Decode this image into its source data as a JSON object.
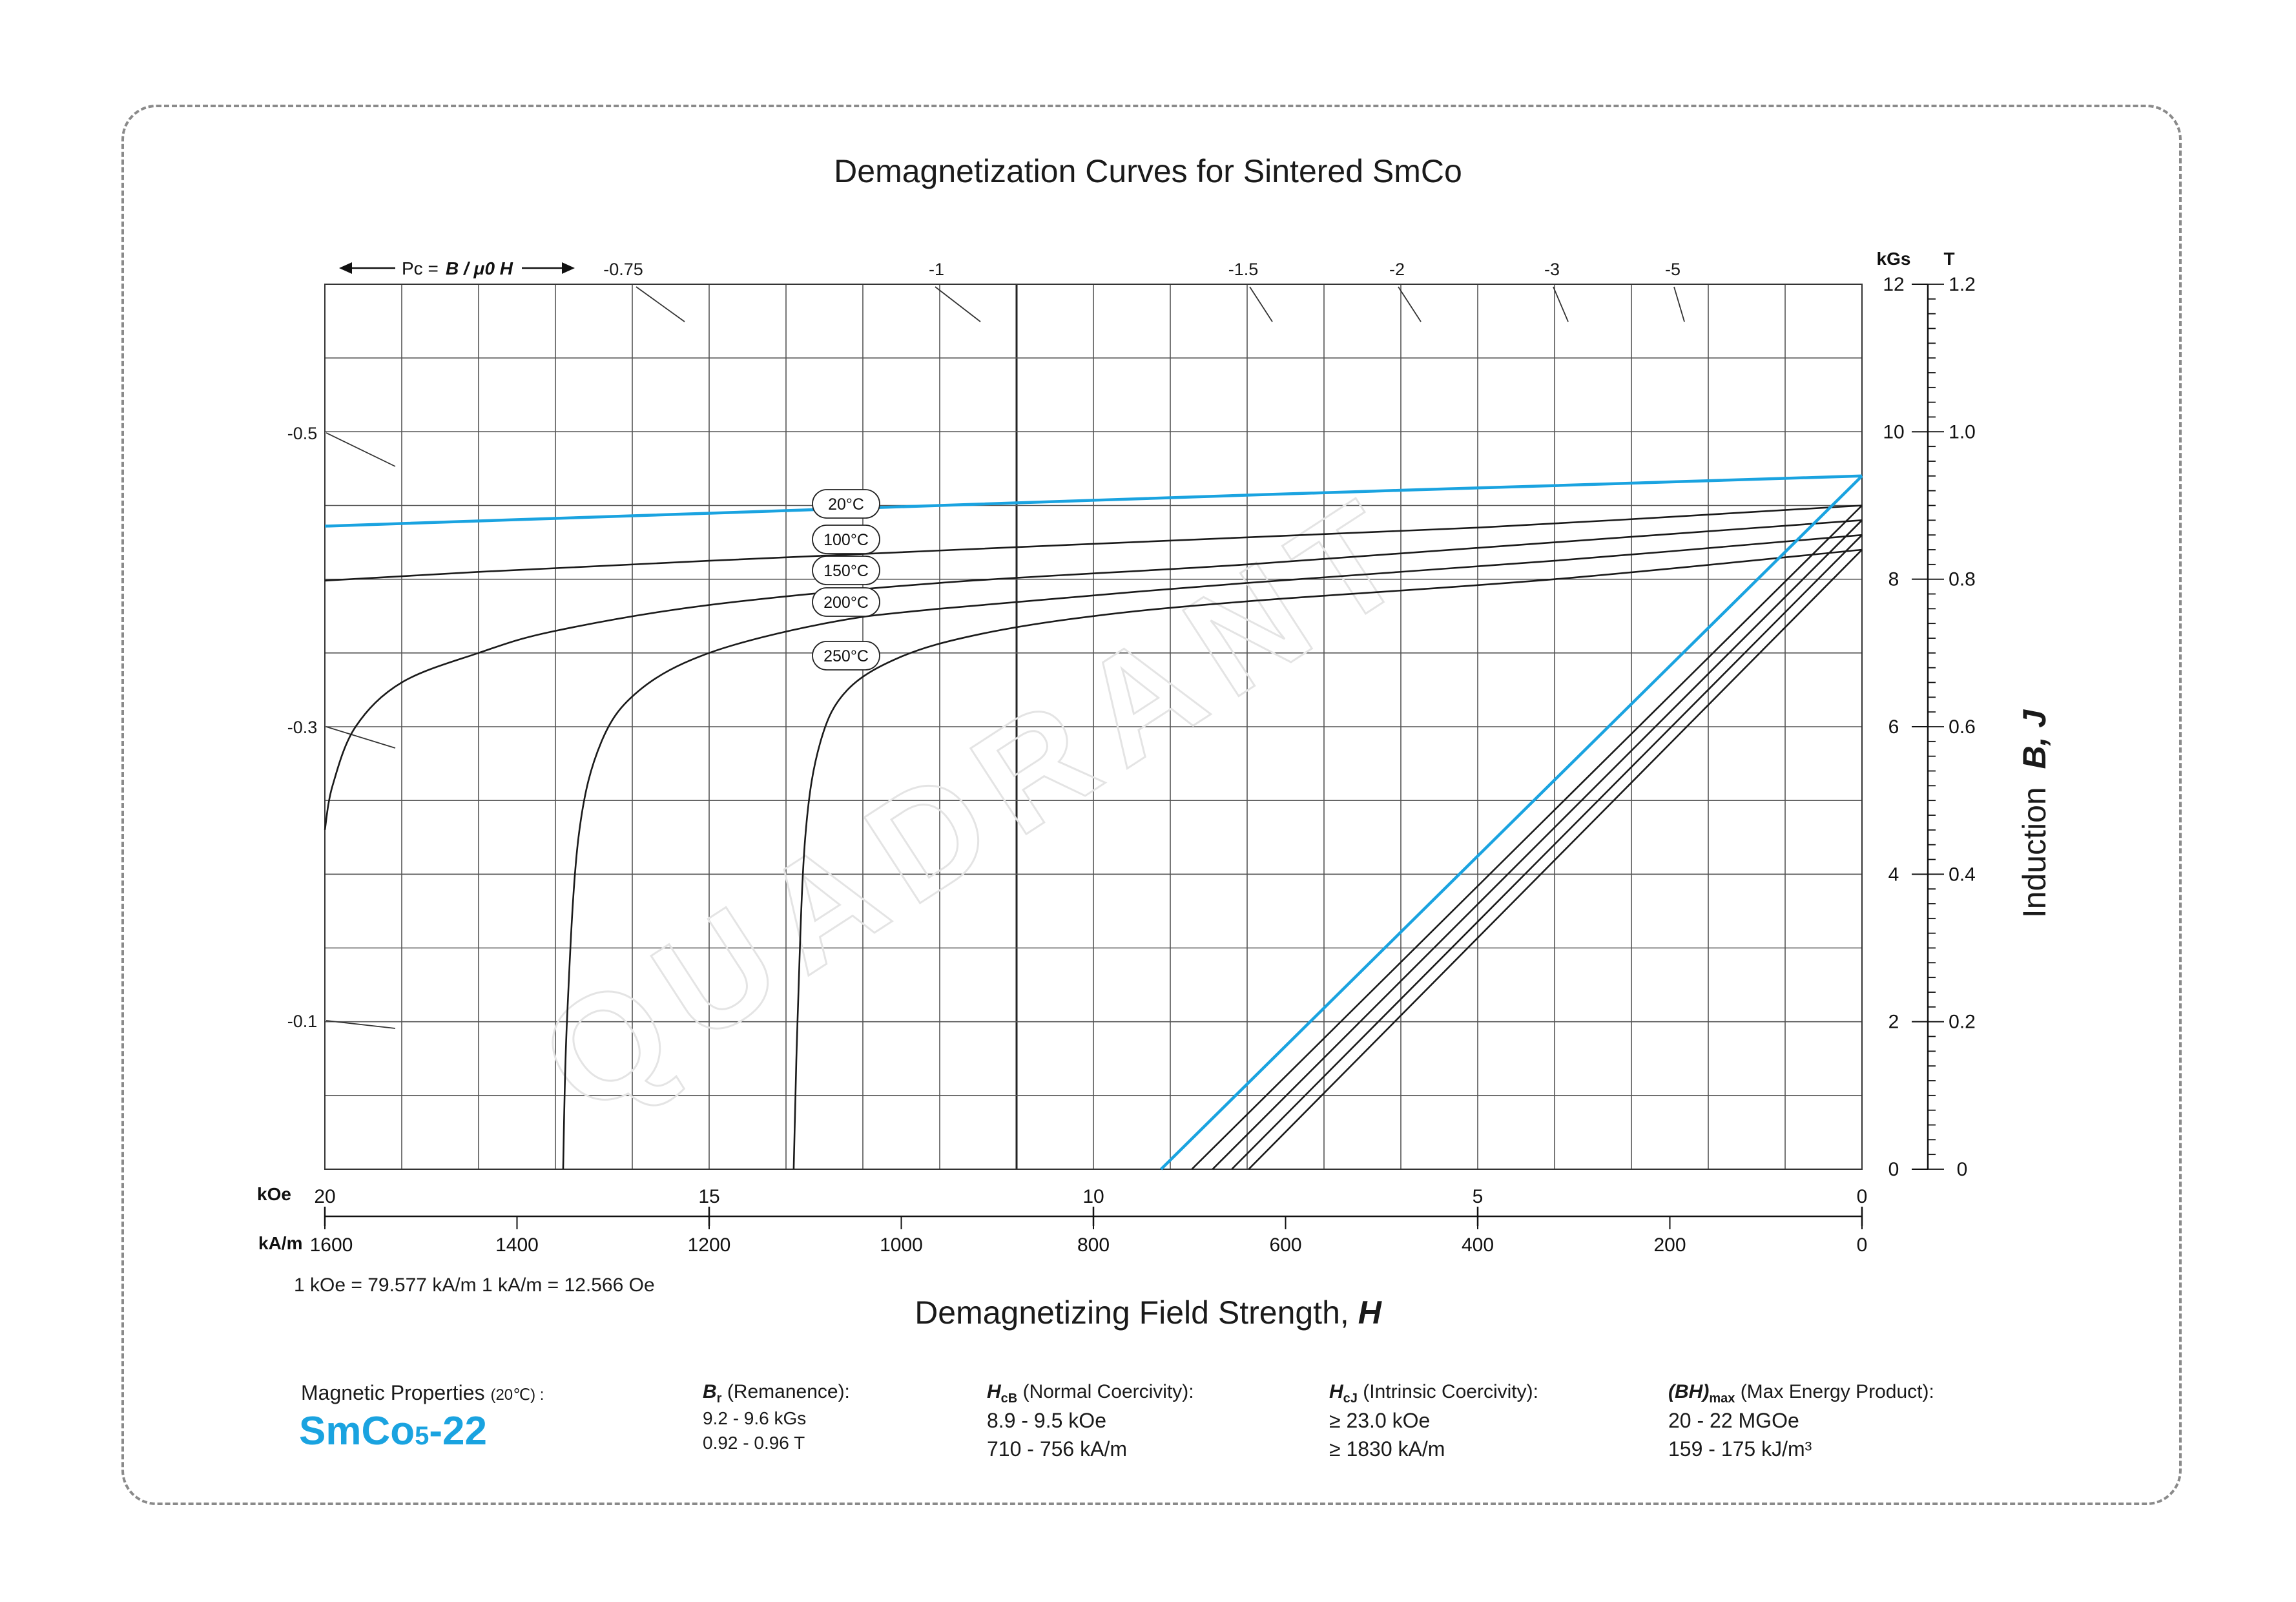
{
  "title": "Demagnetization Curves for Sintered SmCo",
  "conversion_note": "1 kOe = 79.577 kA/m   1 kA/m = 12.566 Oe",
  "x_axis_title": "Demagnetizing Field Strength,",
  "x_axis_title_symbol": "H",
  "y_axis_title": "Induction",
  "y_axis_title_symbol": "B, J",
  "magnetic_properties": {
    "label": "Magnetic Properties",
    "temperature": "(20℃) :",
    "grade": "SmCo",
    "grade_sub": "5",
    "grade_suffix": "-22",
    "items": [
      {
        "symbol": "B",
        "sub": "r",
        "desc": "(Remanence):",
        "line1": "9.2 - 9.6 kGs",
        "line2": "0.92 - 0.96 T"
      },
      {
        "symbol": "H",
        "sub": "cB",
        "desc": "(Normal Coercivity):",
        "line1": "8.9 - 9.5 kOe",
        "line2": "710 - 756 kA/m"
      },
      {
        "symbol": "H",
        "sub": "cJ",
        "desc": "(Intrinsic Coercivity):",
        "line1": "≥ 23.0 kOe",
        "line2": "≥ 1830 kA/m"
      },
      {
        "symbol": "(BH)",
        "sub": "max",
        "desc": "(Max Energy Product):",
        "line1": "20 - 22 MGOe",
        "line2": "159 - 175 kJ/m³"
      }
    ]
  },
  "watermark": "QUADRANT",
  "colors": {
    "highlight": "#1aa3e0",
    "curve": "#1a1a1a",
    "grid": "#555555"
  },
  "chart_data": {
    "type": "line",
    "x_direction": "reversed",
    "xlim": [
      20,
      0
    ],
    "ylim": [
      0,
      12
    ],
    "grid": true,
    "x_unit_label": "kOe",
    "x_alt_unit_label": "kA/m",
    "y_unit_label": "kGs",
    "y_alt_unit_label": "T",
    "x_ticks": [
      20,
      15,
      10,
      5,
      0
    ],
    "x_alt_ticks": [
      1600,
      1400,
      1200,
      1000,
      800,
      600,
      400,
      200,
      0
    ],
    "y_ticks": [
      12,
      10,
      8,
      6,
      4,
      2,
      0
    ],
    "y_alt_ticks": [
      "1.2",
      "1.0",
      "0.8",
      "0.6",
      "0.4",
      "0.2",
      "0"
    ],
    "permeance_label": "Pc =",
    "permeance_symbols": "B / μ0 H",
    "permeance_lines_top": [
      "-0.75",
      "-1",
      "-1.5",
      "-2",
      "-3",
      "-5"
    ],
    "permeance_lines_left": [
      "-0.5",
      "-0.3",
      "-0.1"
    ],
    "series": [
      {
        "name": "20°C",
        "highlight": true,
        "J_curve": [
          [
            20,
            8.72
          ],
          [
            16,
            8.86
          ],
          [
            12,
            9.0
          ],
          [
            8,
            9.14
          ],
          [
            4,
            9.27
          ],
          [
            0,
            9.4
          ]
        ],
        "B_curve": [
          [
            9.12,
            0
          ],
          [
            0,
            9.4
          ]
        ]
      },
      {
        "name": "100°C",
        "highlight": false,
        "J_curve": [
          [
            20,
            7.98
          ],
          [
            18,
            8.1
          ],
          [
            15,
            8.25
          ],
          [
            10,
            8.48
          ],
          [
            5,
            8.7
          ],
          [
            0,
            9.0
          ]
        ],
        "B_curve": [
          [
            8.72,
            0
          ],
          [
            0,
            9.0
          ]
        ]
      },
      {
        "name": "150°C",
        "highlight": false,
        "J_curve": [
          [
            20,
            4.6
          ],
          [
            19.9,
            5.2
          ],
          [
            19.6,
            6.0
          ],
          [
            19,
            6.6
          ],
          [
            18,
            7.0
          ],
          [
            17,
            7.3
          ],
          [
            15,
            7.65
          ],
          [
            12,
            7.95
          ],
          [
            8,
            8.2
          ],
          [
            4,
            8.5
          ],
          [
            0,
            8.8
          ]
        ],
        "B_curve": [
          [
            8.45,
            0
          ],
          [
            0,
            8.8
          ]
        ]
      },
      {
        "name": "200°C",
        "highlight": false,
        "J_curve": [
          [
            16.9,
            0
          ],
          [
            16.85,
            2.0
          ],
          [
            16.7,
            4.5
          ],
          [
            16.4,
            5.8
          ],
          [
            15.9,
            6.5
          ],
          [
            15,
            7.0
          ],
          [
            13.5,
            7.4
          ],
          [
            12,
            7.6
          ],
          [
            8,
            7.95
          ],
          [
            4,
            8.25
          ],
          [
            0,
            8.6
          ]
        ],
        "B_curve": [
          [
            8.2,
            0
          ],
          [
            0,
            8.6
          ]
        ]
      },
      {
        "name": "250°C",
        "highlight": false,
        "J_curve": [
          [
            13.9,
            0
          ],
          [
            13.85,
            2.0
          ],
          [
            13.75,
            4.5
          ],
          [
            13.55,
            5.8
          ],
          [
            13.2,
            6.5
          ],
          [
            12.5,
            6.95
          ],
          [
            11.5,
            7.25
          ],
          [
            10,
            7.5
          ],
          [
            8,
            7.7
          ],
          [
            4,
            8.0
          ],
          [
            0,
            8.4
          ]
        ],
        "B_curve": [
          [
            7.98,
            0
          ],
          [
            0,
            8.4
          ]
        ]
      }
    ]
  }
}
